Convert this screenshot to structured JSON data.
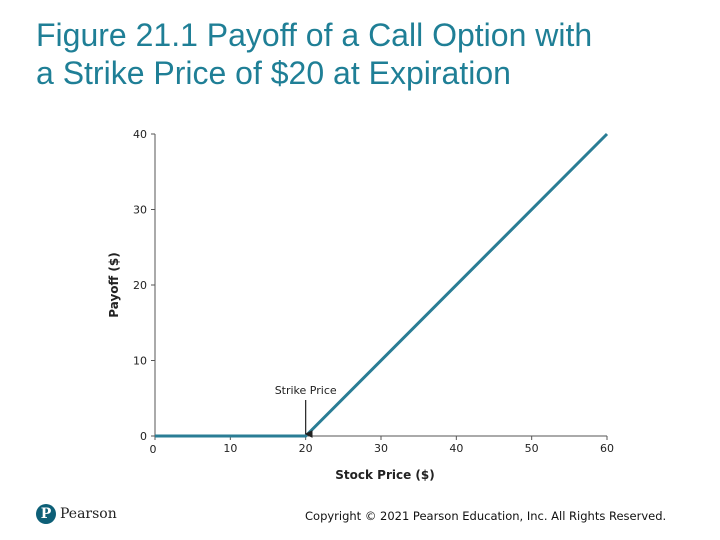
{
  "slide": {
    "title_line1": "Figure 21.1 Payoff of a Call Option with",
    "title_line2": "a Strike Price of $20 at Expiration",
    "logo_text": "Pearson",
    "logo_mark": "P",
    "copyright": "Copyright © 2021 Pearson Education, Inc. All Rights Reserved."
  },
  "colors": {
    "title": "#1f7f96",
    "line": "#2a7d95",
    "axis": "#555555",
    "text": "#222222"
  },
  "chart_data": {
    "type": "line",
    "title": "",
    "xlabel": "Stock Price ($)",
    "ylabel": "Payoff ($)",
    "xlim": [
      0,
      60
    ],
    "ylim": [
      0,
      40
    ],
    "x_ticks": [
      0,
      10,
      20,
      30,
      40,
      50,
      60
    ],
    "y_ticks": [
      0,
      10,
      20,
      30,
      40
    ],
    "grid": false,
    "series": [
      {
        "x": [
          0,
          20,
          60
        ],
        "y": [
          0,
          0,
          40
        ]
      }
    ],
    "annotations": [
      {
        "text": "Strike Price",
        "x": 20,
        "y": 0,
        "arrow": true
      }
    ]
  }
}
